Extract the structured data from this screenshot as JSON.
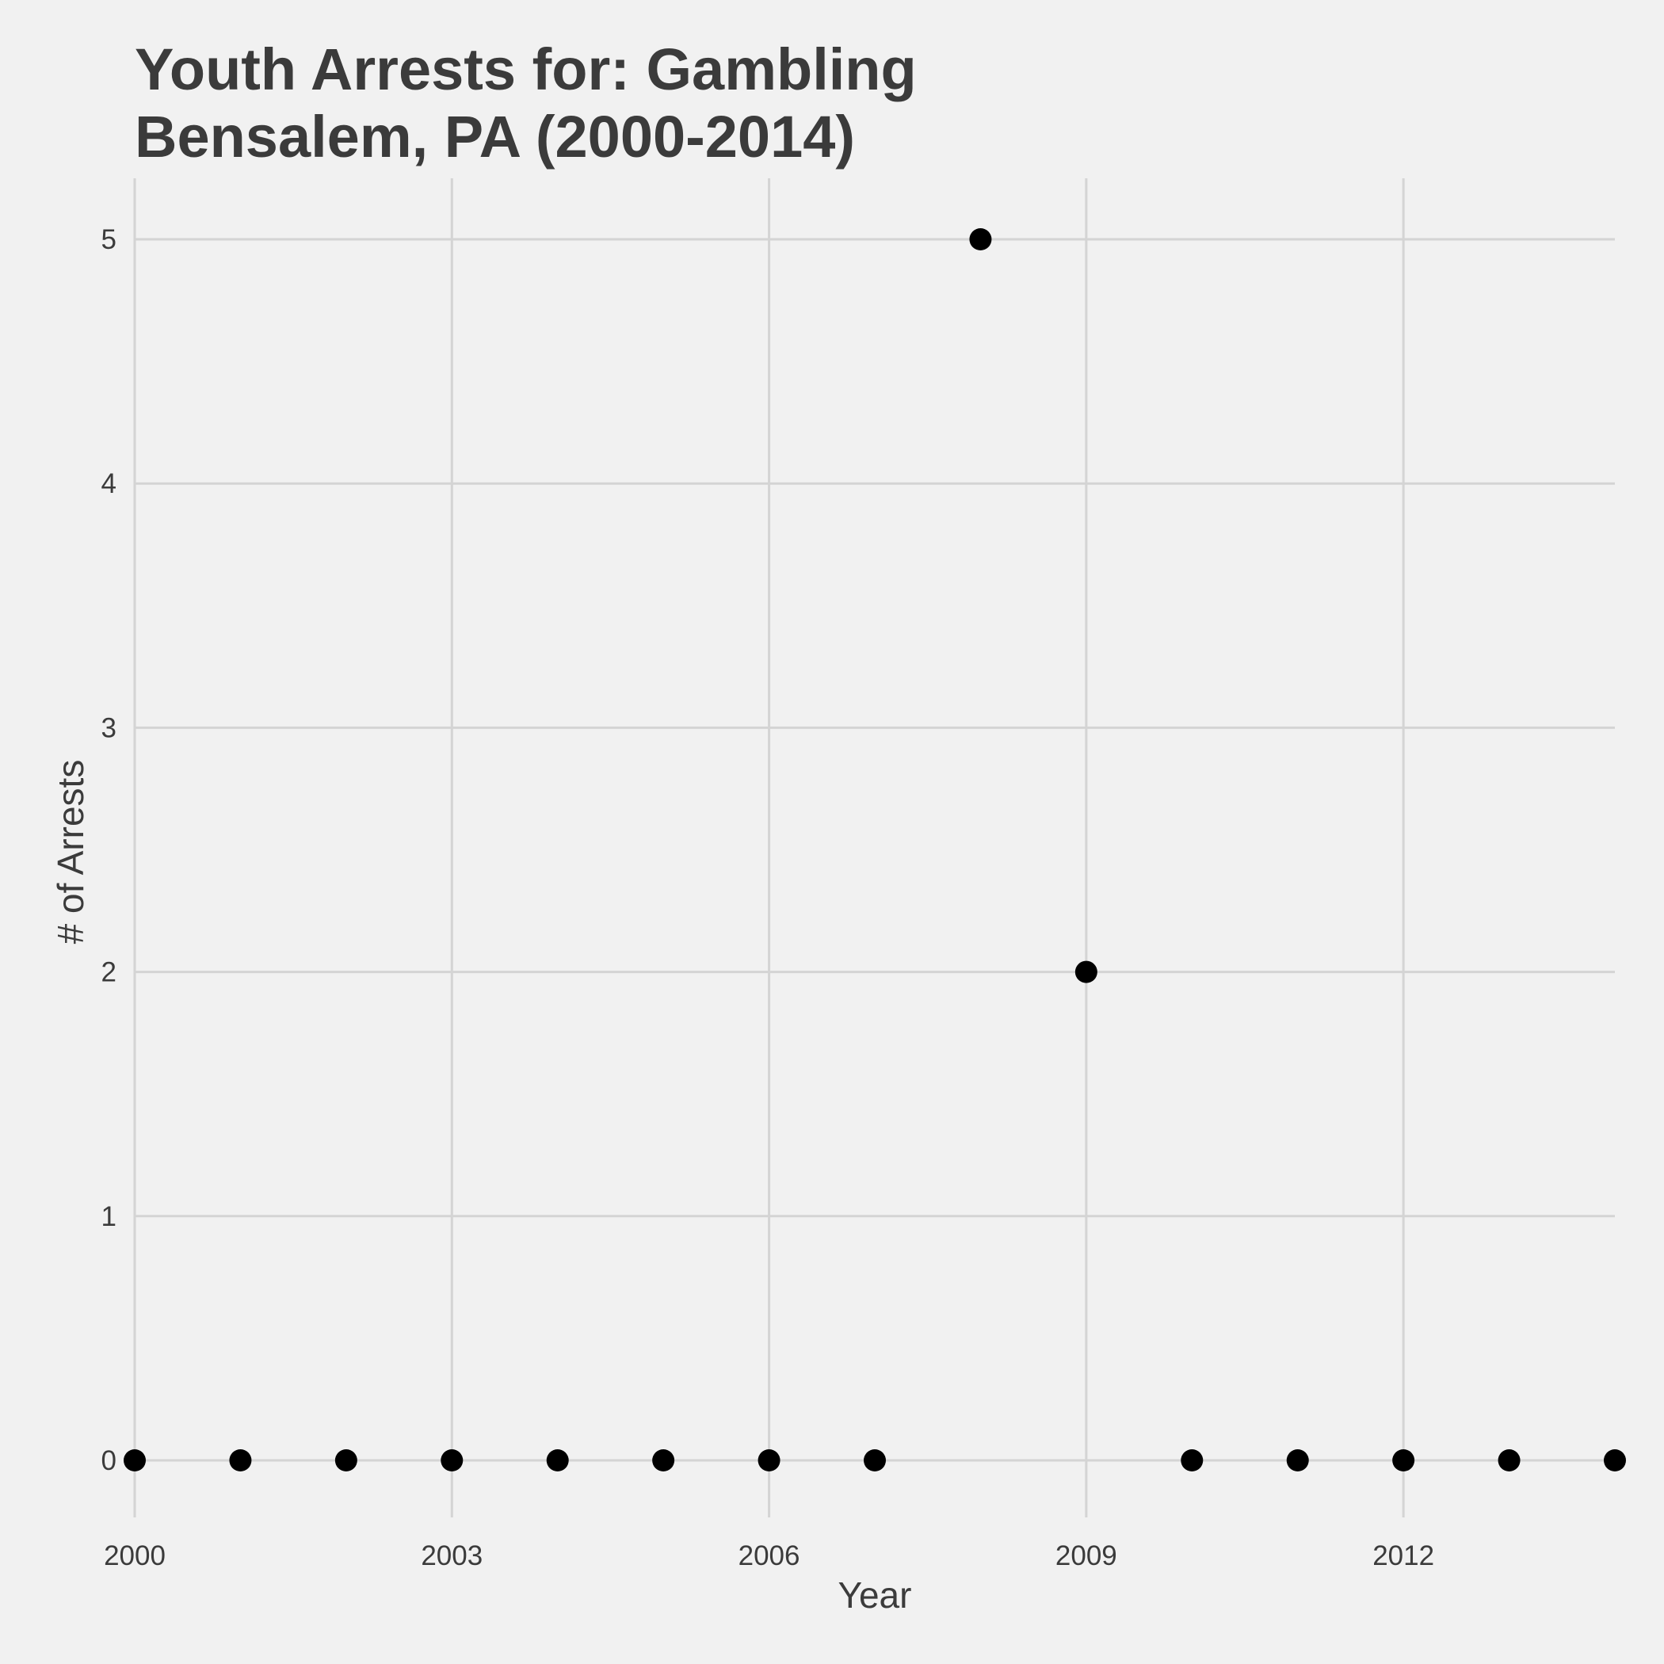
{
  "chart_data": {
    "type": "scatter",
    "title": [
      "Youth Arrests for: Gambling",
      "Bensalem, PA (2000-2014)"
    ],
    "xlabel": "Year",
    "ylabel": "# of Arrests",
    "x": [
      2000,
      2001,
      2002,
      2003,
      2004,
      2005,
      2006,
      2007,
      2008,
      2009,
      2010,
      2011,
      2012,
      2013,
      2014
    ],
    "y": [
      0,
      0,
      0,
      0,
      0,
      0,
      0,
      0,
      5,
      2,
      0,
      0,
      0,
      0,
      0
    ],
    "xlim": [
      2000,
      2014
    ],
    "ylim": [
      0,
      5
    ],
    "xticks": [
      2000,
      2003,
      2006,
      2009,
      2012
    ],
    "yticks": [
      0,
      1,
      2,
      3,
      4,
      5
    ],
    "grid": true,
    "legend": "none",
    "colors": {
      "background": "#f1f1f1",
      "grid": "#d4d4d4",
      "point": "#000000",
      "text": "#3b3b3b"
    }
  }
}
